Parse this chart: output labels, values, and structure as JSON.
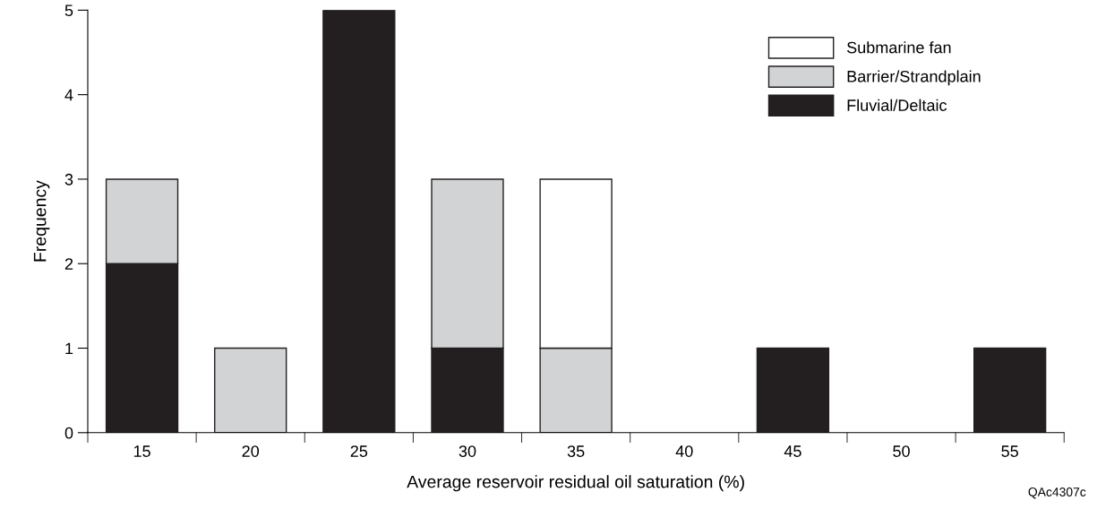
{
  "chart_data": {
    "type": "bar",
    "stacked": true,
    "xlabel": "Average reservoir residual oil saturation (%)",
    "ylabel": "Frequency",
    "categories": [
      "15",
      "20",
      "25",
      "30",
      "35",
      "40",
      "45",
      "50",
      "55"
    ],
    "series": [
      {
        "name": "Fluvial/Deltaic",
        "color": "#231f20",
        "values": [
          2,
          0,
          5,
          1,
          0,
          0,
          1,
          0,
          1
        ]
      },
      {
        "name": "Barrier/Strandplain",
        "color": "#d1d3d4",
        "values": [
          1,
          1,
          0,
          2,
          1,
          0,
          0,
          0,
          0
        ]
      },
      {
        "name": "Submarine fan",
        "color": "#ffffff",
        "values": [
          0,
          0,
          0,
          0,
          2,
          0,
          0,
          0,
          0
        ]
      }
    ],
    "ylim": [
      0,
      5
    ],
    "yticks": [
      0,
      1,
      2,
      3,
      4,
      5
    ],
    "grid": false,
    "legend": "top right",
    "annotations": [
      "QAc4307c"
    ]
  }
}
